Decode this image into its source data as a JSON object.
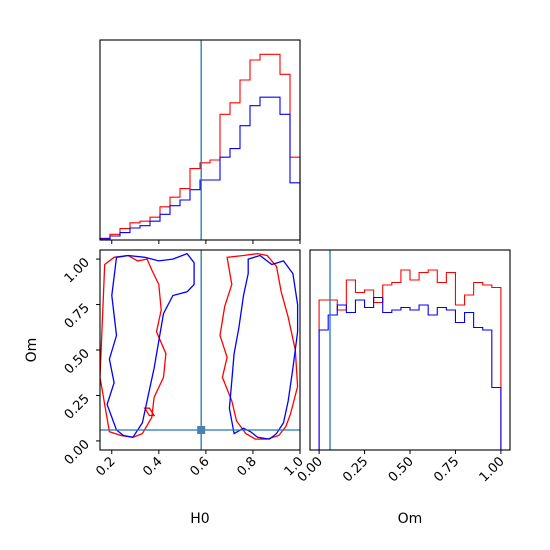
{
  "chart_data": [
    {
      "type": "histogram",
      "panel": "H0 marginal",
      "xlim": [
        0.15,
        1.0
      ],
      "bin_edges": [
        0.15,
        0.1925,
        0.235,
        0.2775,
        0.32,
        0.3625,
        0.405,
        0.4475,
        0.49,
        0.5325,
        0.575,
        0.6175,
        0.66,
        0.7025,
        0.745,
        0.7875,
        0.83,
        0.8725,
        0.915,
        0.9575,
        1.0
      ],
      "truth_line": 0.58,
      "series": [
        {
          "color": "#ff0000",
          "values": [
            0.3,
            1.0,
            2.0,
            3.0,
            3.3,
            4.0,
            5.8,
            7.5,
            9.0,
            12.5,
            13.5,
            14.0,
            22.0,
            24.0,
            28.0,
            31.5,
            32.5,
            32.5,
            29.0,
            14.5
          ]
        },
        {
          "color": "#0000ff",
          "values": [
            0.2,
            0.7,
            1.3,
            2.1,
            2.5,
            3.3,
            4.5,
            6.0,
            7.0,
            8.8,
            10.5,
            10.5,
            14.5,
            16.0,
            20.0,
            23.5,
            25.0,
            25.0,
            22.0,
            10.0
          ]
        }
      ]
    },
    {
      "type": "contour",
      "panel": "H0 vs Om",
      "xlabel": "H0",
      "ylabel": "Om",
      "xlim": [
        0.15,
        1.0
      ],
      "ylim": [
        -0.05,
        1.05
      ],
      "x_ticks": [
        "0.2",
        "0.4",
        "0.6",
        "0.8",
        "1.0"
      ],
      "y_ticks": [
        "0.00",
        "0.25",
        "0.50",
        "0.75",
        "1.00"
      ],
      "truth_point": [
        0.58,
        0.06
      ],
      "series": [
        {
          "color": "#ff0000",
          "regions": [
            {
              "x": [
                0.17,
                0.21,
                0.27,
                0.31,
                0.35,
                0.37,
                0.4,
                0.41,
                0.39,
                0.43,
                0.42,
                0.38,
                0.37,
                0.33,
                0.29,
                0.24,
                0.19,
                0.15
              ],
              "y": [
                0.97,
                1.01,
                1.02,
                0.99,
                1.0,
                0.94,
                0.86,
                0.72,
                0.6,
                0.48,
                0.35,
                0.24,
                0.13,
                0.04,
                0.02,
                0.03,
                0.05,
                0.35
              ]
            },
            {
              "x": [
                0.69,
                0.71,
                0.68,
                0.66,
                0.69,
                0.67,
                0.71,
                0.73,
                0.77,
                0.81,
                0.86,
                0.91,
                0.94,
                0.96,
                0.99,
                0.98,
                0.95,
                0.92,
                0.9,
                0.86,
                0.82,
                0.76
              ],
              "y": [
                1.01,
                0.86,
                0.74,
                0.58,
                0.46,
                0.35,
                0.22,
                0.11,
                0.04,
                0.01,
                0.01,
                0.03,
                0.08,
                0.15,
                0.3,
                0.5,
                0.68,
                0.82,
                0.96,
                1.02,
                1.03,
                1.02
              ]
            },
            {
              "x": [
                0.34,
                0.36,
                0.38,
                0.36,
                0.34
              ],
              "y": [
                0.18,
                0.18,
                0.14,
                0.14,
                0.18
              ]
            }
          ]
        },
        {
          "color": "#0000ff",
          "regions": [
            {
              "x": [
                0.22,
                0.27,
                0.34,
                0.4,
                0.46,
                0.52,
                0.55,
                0.55,
                0.52,
                0.46,
                0.42,
                0.4,
                0.38,
                0.36,
                0.33,
                0.29,
                0.25,
                0.22,
                0.18,
                0.21,
                0.19,
                0.22,
                0.2
              ],
              "y": [
                1.01,
                1.02,
                1.01,
                0.99,
                1.0,
                1.03,
                0.98,
                0.86,
                0.82,
                0.8,
                0.7,
                0.55,
                0.4,
                0.28,
                0.1,
                0.02,
                0.03,
                0.06,
                0.2,
                0.32,
                0.45,
                0.58,
                0.8
              ]
            },
            {
              "x": [
                0.78,
                0.83,
                0.88,
                0.93,
                0.97,
                0.99,
                0.99,
                0.97,
                0.95,
                0.93,
                0.9,
                0.87,
                0.82,
                0.79,
                0.76,
                0.72,
                0.7,
                0.71,
                0.72,
                0.74,
                0.76,
                0.78
              ],
              "y": [
                1.0,
                1.02,
                0.97,
                0.99,
                0.92,
                0.75,
                0.6,
                0.4,
                0.22,
                0.1,
                0.04,
                0.01,
                0.02,
                0.05,
                0.07,
                0.04,
                0.18,
                0.33,
                0.48,
                0.62,
                0.8,
                0.92
              ]
            }
          ]
        }
      ]
    },
    {
      "type": "histogram",
      "panel": "Om marginal",
      "xlabel": "Om",
      "xlim": [
        -0.05,
        1.05
      ],
      "x_ticks": [
        "0.00",
        "0.25",
        "0.50",
        "0.75",
        "1.00"
      ],
      "bin_edges": [
        0,
        0.05,
        0.1,
        0.15,
        0.2,
        0.25,
        0.3,
        0.35,
        0.4,
        0.45,
        0.5,
        0.55,
        0.6,
        0.65,
        0.7,
        0.75,
        0.8,
        0.85,
        0.9,
        0.95,
        1.0
      ],
      "truth_line": 0.06,
      "series": [
        {
          "color": "#ff0000",
          "values": [
            30.0,
            30.0,
            28.0,
            34.0,
            31.5,
            32.0,
            29.5,
            33.0,
            33.5,
            36.0,
            34.0,
            35.5,
            36.0,
            33.5,
            35.5,
            29.0,
            31.0,
            33.5,
            33.0,
            32.5
          ]
        },
        {
          "color": "#0000ff",
          "values": [
            24.0,
            27.0,
            29.0,
            27.5,
            30.0,
            28.5,
            30.5,
            27.5,
            28.0,
            28.5,
            28.0,
            29.0,
            27.0,
            28.5,
            28.0,
            25.5,
            27.5,
            24.5,
            24.0,
            12.5
          ]
        }
      ]
    }
  ]
}
